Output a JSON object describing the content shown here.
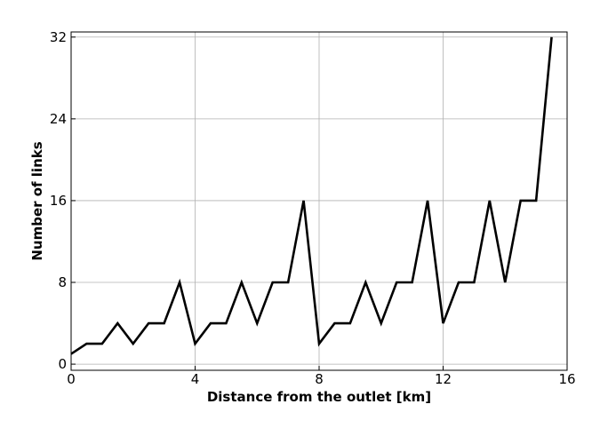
{
  "chart_data": {
    "type": "line",
    "title": "",
    "xlabel": "Distance from the outlet [km]",
    "ylabel": "Number of links",
    "xlim": [
      0,
      16
    ],
    "ylim": [
      -0.6,
      32.5
    ],
    "xticks": [
      0,
      4,
      8,
      12,
      16
    ],
    "yticks": [
      0,
      8,
      16,
      24,
      32
    ],
    "grid": true,
    "legend": "none",
    "series": [
      {
        "color": "#000000",
        "x": [
          0,
          0.5,
          1.0,
          1.5,
          2.0,
          2.5,
          3.0,
          3.5,
          4.0,
          4.5,
          5.0,
          5.5,
          6.0,
          6.5,
          7.0,
          7.5,
          8.0,
          8.5,
          9.0,
          9.5,
          10.0,
          10.5,
          11.0,
          11.5,
          12.0,
          12.5,
          13.0,
          13.5,
          14.0,
          14.5,
          15.0,
          15.5
        ],
        "y": [
          1,
          2,
          2,
          4,
          2,
          4,
          4,
          8,
          2,
          4,
          4,
          8,
          4,
          8,
          8,
          16,
          2,
          4,
          4,
          8,
          4,
          8,
          8,
          16,
          4,
          8,
          8,
          16,
          8,
          16,
          16,
          32
        ]
      }
    ]
  }
}
